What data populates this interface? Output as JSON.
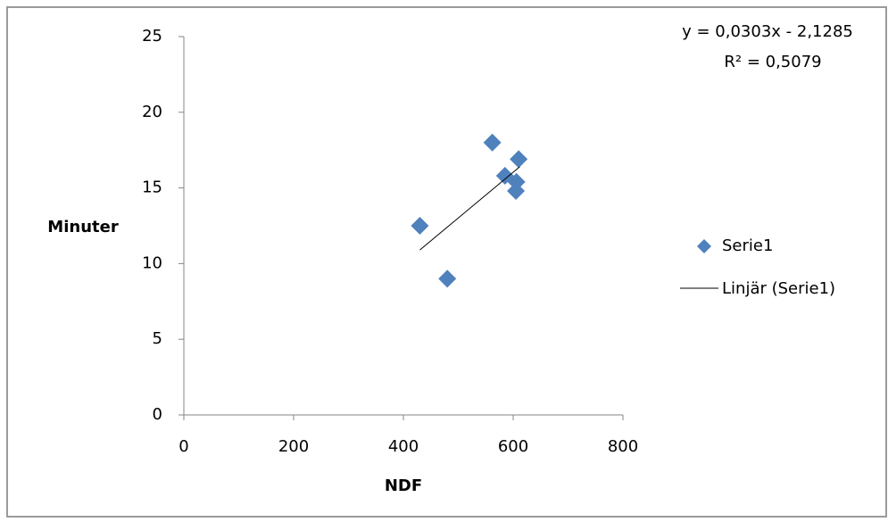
{
  "chart_data": {
    "type": "scatter",
    "x_label": "NDF",
    "y_label": "Minuter",
    "series": [
      {
        "name": "Serie1",
        "color": "#4f81bd",
        "x": [
          430,
          480,
          562,
          585,
          606,
          605,
          610
        ],
        "values": [
          12.5,
          9,
          18,
          15.8,
          15.4,
          14.8,
          16.9
        ]
      }
    ],
    "trendline": {
      "name": "Linjär (Serie1)",
      "color": "#000000",
      "equation": "y = 0,0303x - 2,1285",
      "r2": "R² = 0,5079",
      "x": [
        430,
        612
      ],
      "values": [
        10.9,
        16.4
      ]
    },
    "xlim": [
      0,
      800
    ],
    "xticks": [
      0,
      200,
      400,
      600,
      800
    ],
    "ylim": [
      0,
      25
    ],
    "yticks": [
      0,
      5,
      10,
      15,
      20,
      25
    ],
    "grid": false
  }
}
